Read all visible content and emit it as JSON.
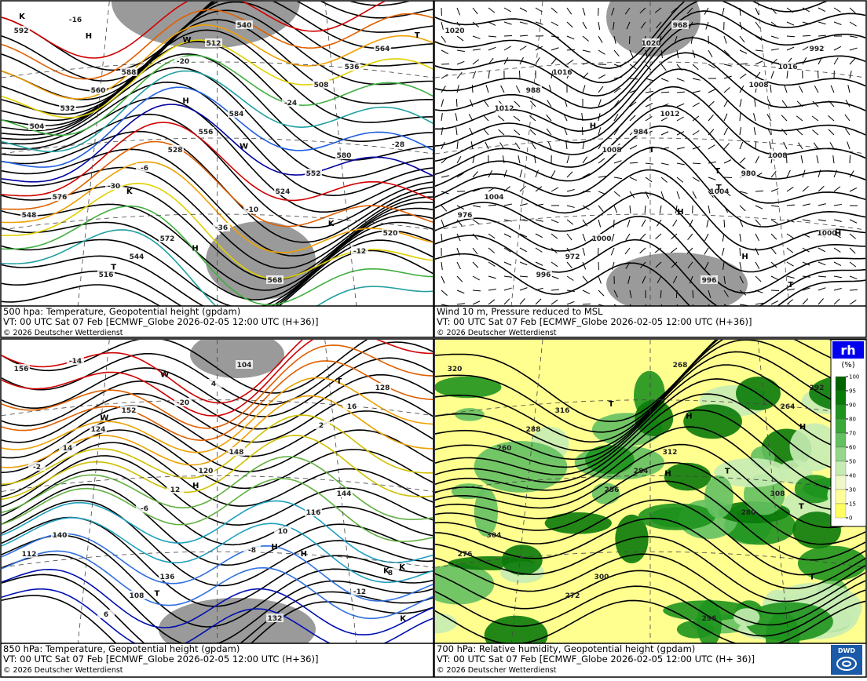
{
  "panels": [
    {
      "caption": [
        "500 hpa: Temperature, Geopotential height (gpdam)",
        "VT: 00 UTC Sat  07 Feb [ECMWF_Globe 2026-02-05 12:00 UTC  (H+36)]",
        "© 2026 Deutscher Wetterdienst"
      ],
      "contour_labels": [
        592,
        588,
        584,
        580,
        576,
        572,
        568,
        564,
        560,
        556,
        552,
        548,
        544,
        540,
        536,
        532,
        528,
        524,
        520,
        516,
        512,
        508,
        504,
        -6,
        -10,
        -12,
        -16,
        -20,
        -24,
        -28,
        -30,
        -36
      ],
      "markers": [
        "H",
        "K",
        "W",
        "T",
        "H",
        "K",
        "W",
        "T",
        "K",
        "H"
      ]
    },
    {
      "caption": [
        "Wind 10 m, Pressure reduced to MSL",
        "VT: 00 UTC Sat  07 Feb [ECMWF_Globe 2026-02-05 12:00 UTC  (H+36)]",
        "© 2026 Deutscher Wetterdienst"
      ],
      "contour_labels": [
        1020,
        1016,
        1012,
        1008,
        1004,
        1000,
        996,
        992,
        988,
        984,
        980,
        976,
        972,
        968,
        1016,
        1012,
        1008,
        1004,
        1000,
        996,
        1020,
        1008
      ],
      "markers": [
        "H",
        "T",
        "H",
        "T",
        "H",
        "T",
        "H",
        "T"
      ]
    },
    {
      "caption": [
        "850 hPa:  Temperature, Geopotential height (gpdam)",
        "VT: 00 UTC Sat  07 Feb [ECMWF_Globe 2026-02-05 12:00 UTC  (H+36)]",
        "© 2026 Deutscher Wetterdienst"
      ],
      "contour_labels": [
        156,
        152,
        148,
        144,
        140,
        136,
        132,
        128,
        124,
        120,
        116,
        112,
        108,
        104,
        16,
        14,
        12,
        10,
        8,
        6,
        4,
        2,
        -2,
        -6,
        -8,
        -12,
        -14,
        -20
      ],
      "markers": [
        "H",
        "K",
        "W",
        "T",
        "H",
        "K",
        "W",
        "T",
        "K",
        "H"
      ]
    },
    {
      "caption": [
        "700 hPa:  Relative humidity, Geopotential height (gpdam)",
        "VT: 00 UTC Sat  07 Feb [ECMWF_Globe  2026-02-05 12:00 UTC (H+ 36)]",
        "© 2026 Deutscher Wetterdienst"
      ],
      "contour_labels": [
        320,
        316,
        312,
        308,
        304,
        300,
        296,
        292,
        288,
        284,
        280,
        276,
        272,
        268,
        264,
        260,
        256
      ],
      "markers": [
        "H",
        "T",
        "H",
        "T",
        "T",
        "H",
        "T"
      ]
    }
  ],
  "legend": {
    "title": "rh",
    "unit": "(%)",
    "ticks": [
      100,
      95,
      90,
      80,
      70,
      60,
      50,
      40,
      30,
      15,
      0
    ],
    "colors": [
      "#006400",
      "#0a7a0a",
      "#1e941e",
      "#3aa83a",
      "#64c060",
      "#96d68a",
      "#c6ecb4",
      "#f0f8c8",
      "#ffff9a",
      "#ffff60"
    ]
  },
  "logo": "DWD"
}
